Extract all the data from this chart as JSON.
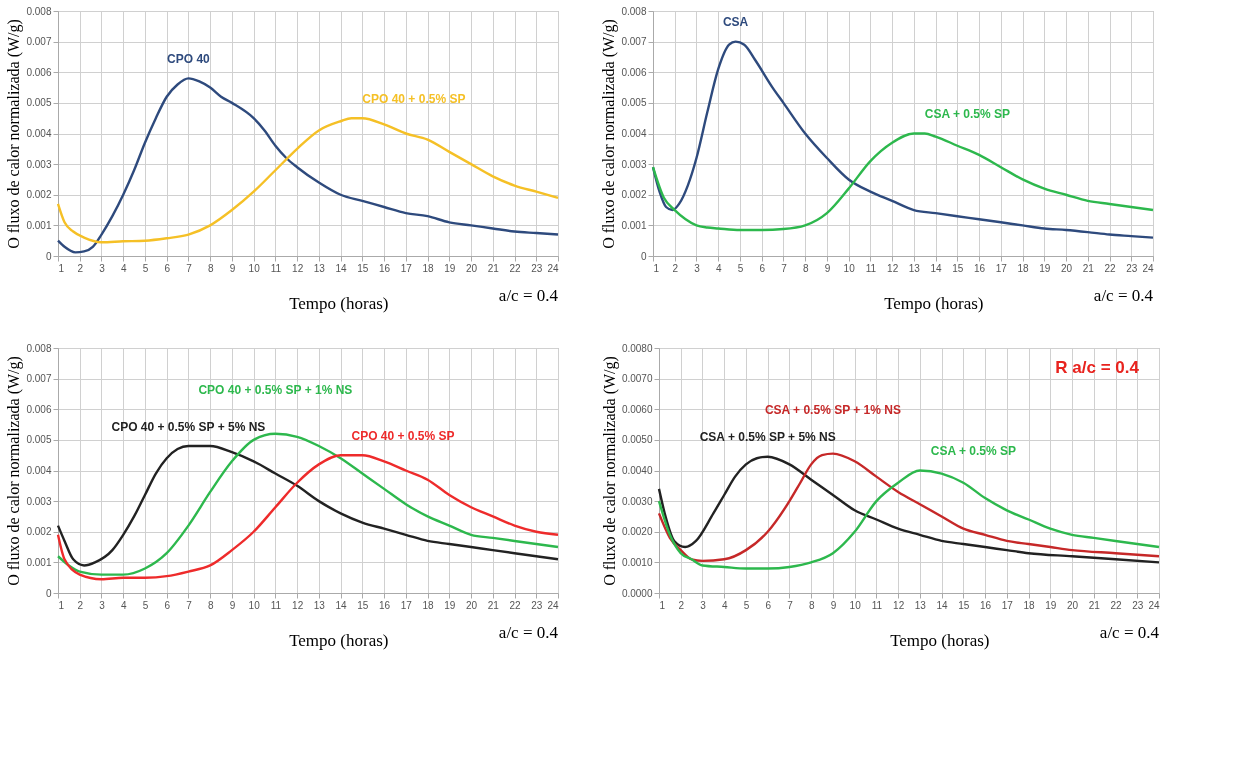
{
  "chart_data": [
    {
      "type": "line",
      "xlabel": "Tempo (horas)",
      "ylabel": "O fluxo de calor normalizada (W/g)",
      "xlim": [
        1,
        24
      ],
      "xticks": [
        1,
        2,
        3,
        4,
        5,
        6,
        7,
        8,
        9,
        10,
        11,
        12,
        13,
        14,
        15,
        16,
        17,
        18,
        19,
        20,
        21,
        22,
        23,
        24
      ],
      "ylim": [
        0,
        0.008
      ],
      "yticks": [
        0,
        0.001,
        0.002,
        0.003,
        0.004,
        0.005,
        0.006,
        0.007,
        0.008
      ],
      "grid": true,
      "legend": false,
      "marker": "none",
      "line_style": "solid",
      "annotations": [
        "a/c = 0.4"
      ],
      "series": [
        {
          "name": "CPO 40",
          "color": "#2e4a7d",
          "x": [
            1,
            1.3,
            1.8,
            2.2,
            2.6,
            3,
            3.5,
            4,
            4.5,
            5,
            5.5,
            6,
            6.5,
            7,
            7.5,
            8,
            8.5,
            9,
            10,
            10.5,
            11,
            11.5,
            12,
            13,
            14,
            15,
            16,
            17,
            18,
            19,
            20,
            21,
            22,
            23,
            24
          ],
          "values": [
            0.0005,
            0.0003,
            0.00012,
            0.00015,
            0.0003,
            0.0007,
            0.0013,
            0.002,
            0.0028,
            0.0037,
            0.0045,
            0.0052,
            0.0056,
            0.0058,
            0.0057,
            0.0055,
            0.0052,
            0.005,
            0.0045,
            0.0041,
            0.0036,
            0.0032,
            0.0029,
            0.0024,
            0.002,
            0.0018,
            0.0016,
            0.0014,
            0.0013,
            0.0011,
            0.001,
            0.0009,
            0.0008,
            0.00075,
            0.0007
          ]
        },
        {
          "name": "CPO 40 + 0.5% SP",
          "color": "#f5c026",
          "x": [
            1,
            1.3,
            1.7,
            2.2,
            3,
            4,
            5,
            6,
            7,
            8,
            9,
            10,
            11,
            12,
            13,
            14,
            14.5,
            15,
            16,
            17,
            18,
            19,
            20,
            21,
            22,
            23,
            24
          ],
          "values": [
            0.0017,
            0.0011,
            0.0008,
            0.0006,
            0.00045,
            0.00048,
            0.0005,
            0.00058,
            0.0007,
            0.001,
            0.0015,
            0.0021,
            0.0028,
            0.0035,
            0.0041,
            0.0044,
            0.0045,
            0.0045,
            0.0043,
            0.004,
            0.0038,
            0.0034,
            0.003,
            0.0026,
            0.0023,
            0.0021,
            0.0019
          ]
        }
      ]
    },
    {
      "type": "line",
      "xlabel": "Tempo (horas)",
      "ylabel": "O fluxo de calor normalizada (W/g)",
      "xlim": [
        1,
        24
      ],
      "xticks": [
        1,
        2,
        3,
        4,
        5,
        6,
        7,
        8,
        9,
        10,
        11,
        12,
        13,
        14,
        15,
        16,
        17,
        18,
        19,
        20,
        21,
        22,
        23,
        24
      ],
      "ylim": [
        0,
        0.008
      ],
      "yticks": [
        0,
        0.001,
        0.002,
        0.003,
        0.004,
        0.005,
        0.006,
        0.007,
        0.008
      ],
      "grid": true,
      "legend": false,
      "marker": "none",
      "line_style": "solid",
      "annotations": [
        "a/c = 0.4"
      ],
      "series": [
        {
          "name": "CSA",
          "color": "#2e4a7d",
          "x": [
            1,
            1.3,
            1.6,
            1.9,
            2.2,
            2.6,
            3,
            3.5,
            4,
            4.5,
            4.8,
            5.2,
            5.7,
            6.5,
            7,
            8,
            9,
            10,
            11,
            12,
            13,
            14,
            15,
            16,
            17,
            18,
            19,
            20,
            21,
            22,
            23,
            24
          ],
          "values": [
            0.0029,
            0.0021,
            0.0016,
            0.0015,
            0.0017,
            0.0023,
            0.0032,
            0.0047,
            0.0061,
            0.0069,
            0.007,
            0.0069,
            0.0064,
            0.0055,
            0.005,
            0.004,
            0.0032,
            0.0025,
            0.0021,
            0.0018,
            0.0015,
            0.0014,
            0.0013,
            0.0012,
            0.0011,
            0.001,
            0.0009,
            0.00085,
            0.00078,
            0.0007,
            0.00065,
            0.0006
          ]
        },
        {
          "name": "CSA + 0.5% SP",
          "color": "#2db84d",
          "x": [
            1,
            1.5,
            2,
            2.5,
            3,
            3.5,
            4,
            5,
            6,
            7,
            8,
            9,
            10,
            11,
            12,
            13,
            13.5,
            14,
            15,
            16,
            17,
            18,
            19,
            20,
            21,
            22,
            23,
            24
          ],
          "values": [
            0.0029,
            0.0019,
            0.0015,
            0.0012,
            0.001,
            0.00093,
            0.0009,
            0.00085,
            0.00085,
            0.00088,
            0.001,
            0.0014,
            0.0022,
            0.0031,
            0.0037,
            0.004,
            0.004,
            0.0039,
            0.0036,
            0.0033,
            0.0029,
            0.0025,
            0.0022,
            0.002,
            0.0018,
            0.0017,
            0.0016,
            0.0015
          ]
        }
      ]
    },
    {
      "type": "line",
      "xlabel": "Tempo (horas)",
      "ylabel": "O fluxo de calor normalizada (W/g)",
      "xlim": [
        1,
        24
      ],
      "xticks": [
        1,
        2,
        3,
        4,
        5,
        6,
        7,
        8,
        9,
        10,
        11,
        12,
        13,
        14,
        15,
        16,
        17,
        18,
        19,
        20,
        21,
        22,
        23,
        24
      ],
      "ylim": [
        0,
        0.008
      ],
      "yticks": [
        0,
        0.001,
        0.002,
        0.003,
        0.004,
        0.005,
        0.006,
        0.007,
        0.008
      ],
      "grid": true,
      "legend": false,
      "marker": "none",
      "line_style": "solid",
      "annotations": [
        "a/c = 0.4"
      ],
      "series": [
        {
          "name": "CPO 40 + 0.5% SP + 5% NS",
          "color": "#222222",
          "x": [
            1,
            1.3,
            1.7,
            2.2,
            2.7,
            3.5,
            4,
            4.5,
            5,
            5.5,
            6,
            6.5,
            7,
            7.5,
            8,
            9,
            10,
            11,
            12,
            13,
            14,
            15,
            16,
            17,
            18,
            19,
            20,
            21,
            22,
            23,
            24
          ],
          "values": [
            0.0022,
            0.0017,
            0.0011,
            0.0009,
            0.001,
            0.0014,
            0.0019,
            0.0025,
            0.0032,
            0.0039,
            0.0044,
            0.0047,
            0.0048,
            0.0048,
            0.0048,
            0.0046,
            0.0043,
            0.0039,
            0.0035,
            0.003,
            0.0026,
            0.0023,
            0.0021,
            0.0019,
            0.0017,
            0.0016,
            0.0015,
            0.0014,
            0.0013,
            0.0012,
            0.0011
          ]
        },
        {
          "name": "CPO 40 + 0.5% SP + 1% NS",
          "color": "#2db84d",
          "x": [
            1,
            1.5,
            2,
            3,
            4,
            5,
            6,
            7,
            8,
            9,
            10,
            11,
            12,
            13,
            14,
            15,
            16,
            17,
            18,
            19,
            20,
            21,
            22,
            23,
            24
          ],
          "values": [
            0.0012,
            0.0009,
            0.0007,
            0.0006,
            0.0006,
            0.0008,
            0.0013,
            0.0022,
            0.0033,
            0.0043,
            0.005,
            0.0052,
            0.0051,
            0.0048,
            0.0044,
            0.0039,
            0.0034,
            0.0029,
            0.0025,
            0.0022,
            0.0019,
            0.0018,
            0.0017,
            0.0016,
            0.0015
          ]
        },
        {
          "name": "CPO 40 + 0.5% SP",
          "color": "#ee2b2b",
          "x": [
            1,
            1.3,
            2,
            3,
            4,
            5,
            6,
            7,
            8,
            9,
            10,
            11,
            12,
            13,
            14,
            15,
            16,
            17,
            18,
            19,
            20,
            21,
            22,
            23,
            24
          ],
          "values": [
            0.0019,
            0.0011,
            0.0006,
            0.00045,
            0.0005,
            0.0005,
            0.00055,
            0.0007,
            0.0009,
            0.0014,
            0.002,
            0.0028,
            0.0036,
            0.0042,
            0.0045,
            0.0045,
            0.0043,
            0.004,
            0.0037,
            0.0032,
            0.0028,
            0.0025,
            0.0022,
            0.002,
            0.0019
          ]
        }
      ]
    },
    {
      "type": "line",
      "xlabel": "Tempo (horas)",
      "ylabel": "O fluxo de calor normalizada (W/g)",
      "xlim": [
        1,
        24
      ],
      "xticks": [
        1,
        2,
        3,
        4,
        5,
        6,
        7,
        8,
        9,
        10,
        11,
        12,
        13,
        14,
        15,
        16,
        17,
        18,
        19,
        20,
        21,
        22,
        23,
        24
      ],
      "ylim": [
        0,
        0.008
      ],
      "yticks": [
        {
          "value": 0,
          "label": "0.0000"
        },
        {
          "value": 0.001,
          "label": "0.0010"
        },
        {
          "value": 0.002,
          "label": "0.0020"
        },
        {
          "value": 0.003,
          "label": "0.0030"
        },
        {
          "value": 0.004,
          "label": "0.0040"
        },
        {
          "value": 0.005,
          "label": "0.0050"
        },
        {
          "value": 0.006,
          "label": "0.0060"
        },
        {
          "value": 0.007,
          "label": "0.0070"
        },
        {
          "value": 0.008,
          "label": "0.0080"
        }
      ],
      "grid": true,
      "legend": false,
      "marker": "none",
      "line_style": "solid",
      "annotations": [
        "a/c = 0.4",
        "R a/c = 0.4"
      ],
      "series": [
        {
          "name": "CSA + 0.5% SP + 5% NS",
          "color": "#222222",
          "x": [
            1,
            1.3,
            1.7,
            2.2,
            2.7,
            3.5,
            4,
            4.5,
            5,
            5.5,
            6,
            7,
            8,
            9,
            10,
            11,
            12,
            13,
            14,
            15,
            16,
            17,
            18,
            20,
            22,
            24
          ],
          "values": [
            0.0034,
            0.0025,
            0.0017,
            0.0015,
            0.0017,
            0.0026,
            0.0032,
            0.0038,
            0.0042,
            0.0044,
            0.00445,
            0.0042,
            0.0037,
            0.0032,
            0.0027,
            0.0024,
            0.0021,
            0.0019,
            0.0017,
            0.0016,
            0.0015,
            0.0014,
            0.0013,
            0.0012,
            0.0011,
            0.001
          ]
        },
        {
          "name": "CSA + 0.5% SP + 1% NS",
          "color": "#c62828",
          "x": [
            1,
            1.5,
            2,
            2.5,
            3,
            4,
            5,
            6,
            7,
            7.5,
            8,
            8.5,
            9,
            10,
            11,
            12,
            13,
            14,
            15,
            16,
            17,
            18,
            19,
            20,
            22,
            24
          ],
          "values": [
            0.0026,
            0.0018,
            0.0014,
            0.0011,
            0.00105,
            0.0011,
            0.0014,
            0.002,
            0.003,
            0.0036,
            0.0042,
            0.0045,
            0.00455,
            0.0043,
            0.0038,
            0.0033,
            0.0029,
            0.0025,
            0.0021,
            0.0019,
            0.0017,
            0.0016,
            0.0015,
            0.0014,
            0.0013,
            0.0012
          ]
        },
        {
          "name": "CSA + 0.5% SP",
          "color": "#2db84d",
          "x": [
            1,
            1.5,
            2,
            2.5,
            3,
            4,
            5,
            6,
            7,
            8,
            9,
            10,
            11,
            12,
            13,
            14,
            15,
            16,
            17,
            18,
            19,
            20,
            21,
            22,
            23,
            24
          ],
          "values": [
            0.003,
            0.0019,
            0.0013,
            0.0011,
            0.0009,
            0.00085,
            0.0008,
            0.0008,
            0.00085,
            0.001,
            0.0013,
            0.002,
            0.003,
            0.0036,
            0.004,
            0.0039,
            0.0036,
            0.0031,
            0.0027,
            0.0024,
            0.0021,
            0.0019,
            0.0018,
            0.0017,
            0.0016,
            0.0015
          ]
        }
      ]
    }
  ]
}
